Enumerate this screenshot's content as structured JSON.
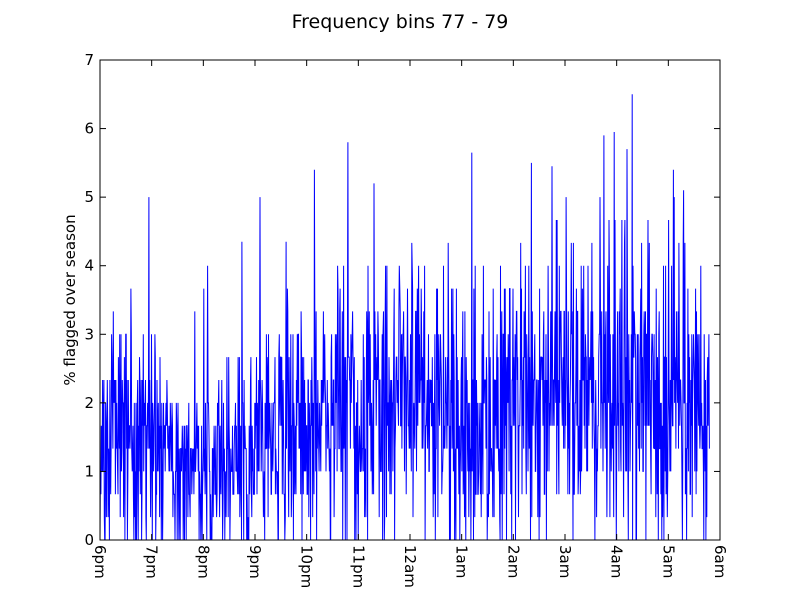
{
  "chart_data": {
    "type": "line",
    "title": "Frequency bins 77 - 79",
    "xlabel": "",
    "ylabel": "% flagged over season",
    "x_tick_labels": [
      "6pm",
      "7pm",
      "8pm",
      "9pm",
      "10pm",
      "11pm",
      "12am",
      "1am",
      "2am",
      "3am",
      "4am",
      "5am",
      "6am"
    ],
    "y_tick_labels": [
      "0",
      "1",
      "2",
      "3",
      "4",
      "5",
      "6",
      "7"
    ],
    "ylim": [
      0,
      7
    ],
    "xlim_hours": [
      0,
      12
    ],
    "grid": false,
    "legend": "none",
    "series": [
      {
        "color": "#0000ff",
        "sample_interval_hours": 0.0083,
        "coverage_hours": [
          0.0,
          11.8
        ],
        "trend": {
          "hours": [
            0.0,
            0.5,
            1.0,
            1.5,
            2.0,
            2.5,
            3.0,
            3.5,
            4.0,
            4.5,
            5.0,
            5.5,
            6.0,
            6.5,
            7.0,
            7.5,
            8.0,
            8.5,
            9.0,
            9.5,
            10.0,
            10.5,
            11.0,
            11.5,
            11.8
          ],
          "mean": [
            1.7,
            1.6,
            1.4,
            1.1,
            1.0,
            1.2,
            1.4,
            1.5,
            1.7,
            1.8,
            1.9,
            2.0,
            2.1,
            1.9,
            1.8,
            1.7,
            1.9,
            2.0,
            2.2,
            2.2,
            2.1,
            2.1,
            2.0,
            1.9,
            1.8
          ],
          "spread": [
            1.0,
            1.0,
            1.0,
            0.9,
            0.9,
            1.0,
            1.1,
            1.2,
            1.3,
            1.3,
            1.4,
            1.4,
            1.4,
            1.3,
            1.3,
            1.3,
            1.4,
            1.4,
            1.4,
            1.4,
            1.4,
            1.4,
            1.3,
            1.3,
            1.2
          ]
        },
        "peaks": [
          {
            "hour": 0.95,
            "value": 5.0
          },
          {
            "hour": 2.75,
            "value": 4.35
          },
          {
            "hour": 3.6,
            "value": 4.35
          },
          {
            "hour": 4.15,
            "value": 5.4
          },
          {
            "hour": 4.8,
            "value": 5.8
          },
          {
            "hour": 5.3,
            "value": 5.2
          },
          {
            "hour": 7.2,
            "value": 5.65
          },
          {
            "hour": 8.35,
            "value": 5.5
          },
          {
            "hour": 8.75,
            "value": 5.45
          },
          {
            "hour": 9.75,
            "value": 5.9
          },
          {
            "hour": 9.95,
            "value": 5.95
          },
          {
            "hour": 10.3,
            "value": 6.5
          },
          {
            "hour": 10.2,
            "value": 5.7
          },
          {
            "hour": 11.1,
            "value": 5.4
          },
          {
            "hour": 11.3,
            "value": 5.1
          }
        ]
      }
    ]
  }
}
